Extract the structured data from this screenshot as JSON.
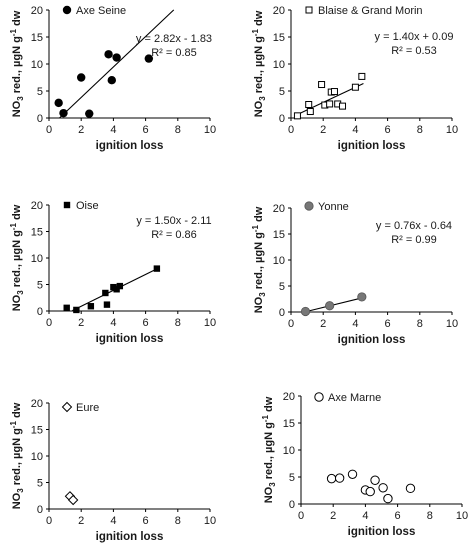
{
  "figure": {
    "background": "#ffffff",
    "axis_color": "#000000",
    "text_color": "#1a1a1a"
  },
  "chart_data": [
    {
      "type": "scatter",
      "legend_label": "Axe Seine",
      "marker": "filled-circle",
      "marker_color": "#000000",
      "xlabel": "ignition loss",
      "ylabel": "NO3 red., µgN g-1 dw",
      "xlim": [
        0,
        10
      ],
      "ylim": [
        0,
        20
      ],
      "xticks": [
        0,
        2,
        4,
        6,
        8,
        10
      ],
      "yticks": [
        0,
        5,
        10,
        15,
        20
      ],
      "points": [
        [
          0.6,
          2.8
        ],
        [
          0.9,
          0.9
        ],
        [
          2.0,
          7.5
        ],
        [
          2.5,
          0.8
        ],
        [
          3.7,
          11.8
        ],
        [
          3.9,
          7.0
        ],
        [
          4.2,
          11.2
        ],
        [
          6.2,
          11.0
        ]
      ],
      "fit": {
        "slope": 2.82,
        "intercept": -1.83,
        "x_range": [
          0.65,
          7.75
        ]
      },
      "equation": "y = 2.82x - 1.83",
      "r2": "R² = 0.85"
    },
    {
      "type": "scatter",
      "legend_label": "Blaise & Grand Morin",
      "marker": "open-square",
      "marker_color": "#000000",
      "xlabel": "ignition loss",
      "ylabel": "NO3 red., µgN g-1 dw",
      "xlim": [
        0,
        10
      ],
      "ylim": [
        0,
        20
      ],
      "xticks": [
        0,
        2,
        4,
        6,
        8,
        10
      ],
      "yticks": [
        0,
        5,
        10,
        15,
        20
      ],
      "points": [
        [
          0.4,
          0.4
        ],
        [
          1.1,
          2.5
        ],
        [
          1.2,
          1.2
        ],
        [
          1.9,
          6.2
        ],
        [
          2.1,
          2.4
        ],
        [
          2.4,
          2.6
        ],
        [
          2.5,
          4.8
        ],
        [
          2.7,
          4.9
        ],
        [
          2.9,
          2.6
        ],
        [
          3.2,
          2.2
        ],
        [
          4.0,
          5.7
        ],
        [
          4.4,
          7.7
        ]
      ],
      "fit": {
        "slope": 1.4,
        "intercept": 0.09,
        "x_range": [
          0.4,
          4.5
        ]
      },
      "equation": "y = 1.40x + 0.09",
      "r2": "R² = 0.53"
    },
    {
      "type": "scatter",
      "legend_label": "Oise",
      "marker": "filled-square",
      "marker_color": "#000000",
      "xlabel": "ignition loss",
      "ylabel": "NO3 red., µgN g-1 dw",
      "xlim": [
        0,
        10
      ],
      "ylim": [
        0,
        20
      ],
      "xticks": [
        0,
        2,
        4,
        6,
        8,
        10
      ],
      "yticks": [
        0,
        5,
        10,
        15,
        20
      ],
      "points": [
        [
          1.1,
          0.6
        ],
        [
          1.7,
          0.2
        ],
        [
          2.6,
          0.9
        ],
        [
          3.5,
          3.4
        ],
        [
          3.6,
          1.2
        ],
        [
          4.0,
          4.5
        ],
        [
          4.2,
          4.1
        ],
        [
          4.4,
          4.7
        ],
        [
          6.7,
          8.0
        ]
      ],
      "fit": {
        "slope": 1.5,
        "intercept": -2.11,
        "x_range": [
          1.45,
          6.7
        ]
      },
      "equation": "y = 1.50x - 2.11",
      "r2": "R² = 0.86"
    },
    {
      "type": "scatter",
      "legend_label": "Yonne",
      "marker": "filled-circle-gray",
      "marker_color": "#777777",
      "xlabel": "ignition loss",
      "ylabel": "NO3 red., µgN g-1 dw",
      "xlim": [
        0,
        10
      ],
      "ylim": [
        0,
        20
      ],
      "xticks": [
        0,
        2,
        4,
        6,
        8,
        10
      ],
      "yticks": [
        0,
        5,
        10,
        15,
        20
      ],
      "points": [
        [
          0.9,
          0.1
        ],
        [
          2.4,
          1.2
        ],
        [
          4.4,
          2.9
        ]
      ],
      "fit": {
        "slope": 0.76,
        "intercept": -0.64,
        "x_range": [
          0.9,
          4.4
        ]
      },
      "equation": "y = 0.76x - 0.64",
      "r2": "R² = 0.99"
    },
    {
      "type": "scatter",
      "legend_label": "Eure",
      "marker": "open-diamond",
      "marker_color": "#000000",
      "xlabel": "ignition loss",
      "ylabel": "NO3 red., µgN g-1 dw",
      "xlim": [
        0,
        10
      ],
      "ylim": [
        0,
        20
      ],
      "xticks": [
        0,
        2,
        4,
        6,
        8,
        10
      ],
      "yticks": [
        0,
        5,
        10,
        15,
        20
      ],
      "points": [
        [
          1.3,
          2.4
        ],
        [
          1.5,
          1.7
        ]
      ]
    },
    {
      "type": "scatter",
      "legend_label": "Axe Marne",
      "marker": "open-circle",
      "marker_color": "#000000",
      "xlabel": "ignition loss",
      "ylabel": "NO3 red., µgN g-1 dw",
      "xlim": [
        0,
        10
      ],
      "ylim": [
        0,
        20
      ],
      "xticks": [
        0,
        2,
        4,
        6,
        8,
        10
      ],
      "yticks": [
        0,
        5,
        10,
        15,
        20
      ],
      "points": [
        [
          1.9,
          4.7
        ],
        [
          2.4,
          4.8
        ],
        [
          3.2,
          5.5
        ],
        [
          4.0,
          2.6
        ],
        [
          4.3,
          2.3
        ],
        [
          4.6,
          4.4
        ],
        [
          5.1,
          3.0
        ],
        [
          5.4,
          1.0
        ],
        [
          6.8,
          2.9
        ]
      ]
    }
  ]
}
